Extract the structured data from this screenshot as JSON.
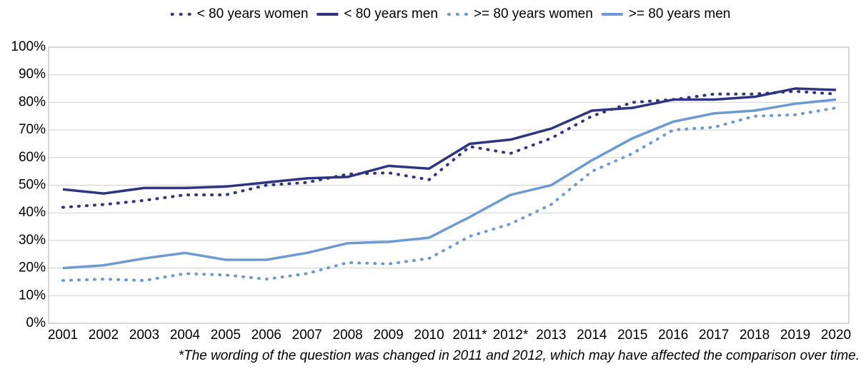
{
  "chart_data": {
    "type": "line",
    "categories": [
      "2001",
      "2002",
      "2003",
      "2004",
      "2005",
      "2006",
      "2007",
      "2008",
      "2009",
      "2010",
      "2011*",
      "2012*",
      "2013",
      "2014",
      "2015",
      "2016",
      "2017",
      "2018",
      "2019",
      "2020"
    ],
    "series": [
      {
        "name": "< 80 years women",
        "color": "#2e3580",
        "dotted": true,
        "values": [
          42,
          43,
          44.5,
          46.5,
          46.5,
          50,
          51,
          54,
          54.5,
          52,
          64,
          61.5,
          67,
          75,
          80,
          81,
          83,
          83,
          84,
          83
        ]
      },
      {
        "name": "< 80 years men",
        "color": "#2e3580",
        "dotted": false,
        "values": [
          48.5,
          47,
          49,
          49,
          49.5,
          51,
          52.5,
          53,
          57,
          56,
          65,
          66.5,
          70.5,
          77,
          78,
          81,
          81,
          82,
          85,
          84.5
        ]
      },
      {
        "name": ">= 80 years women",
        "color": "#6b9bd1",
        "dotted": true,
        "values": [
          15.5,
          16,
          15.5,
          18,
          17.5,
          16,
          18,
          22,
          21.5,
          23.5,
          31.5,
          36,
          43,
          55,
          61.5,
          70,
          71,
          75,
          75.5,
          78
        ]
      },
      {
        "name": ">= 80 years men",
        "color": "#6b9bd1",
        "dotted": false,
        "values": [
          20,
          21,
          23.5,
          25.5,
          23,
          23,
          25.5,
          29,
          29.5,
          31,
          38.5,
          46.5,
          50,
          59,
          67,
          73,
          76,
          77,
          79.5,
          81
        ]
      }
    ],
    "ylim": [
      0,
      100
    ],
    "yticks": [
      {
        "value": 0,
        "label": "0%"
      },
      {
        "value": 10,
        "label": "10%"
      },
      {
        "value": 20,
        "label": "20%"
      },
      {
        "value": 30,
        "label": "30%"
      },
      {
        "value": 40,
        "label": "40%"
      },
      {
        "value": 50,
        "label": "50%"
      },
      {
        "value": 60,
        "label": "60%"
      },
      {
        "value": 70,
        "label": "70%"
      },
      {
        "value": 80,
        "label": "80%"
      },
      {
        "value": 90,
        "label": "90%"
      },
      {
        "value": 100,
        "label": "100%"
      }
    ],
    "grid": true,
    "legend": "top",
    "note": "*The wording of the question was changed in 2011 and 2012, which may have affected the comparison over time."
  }
}
